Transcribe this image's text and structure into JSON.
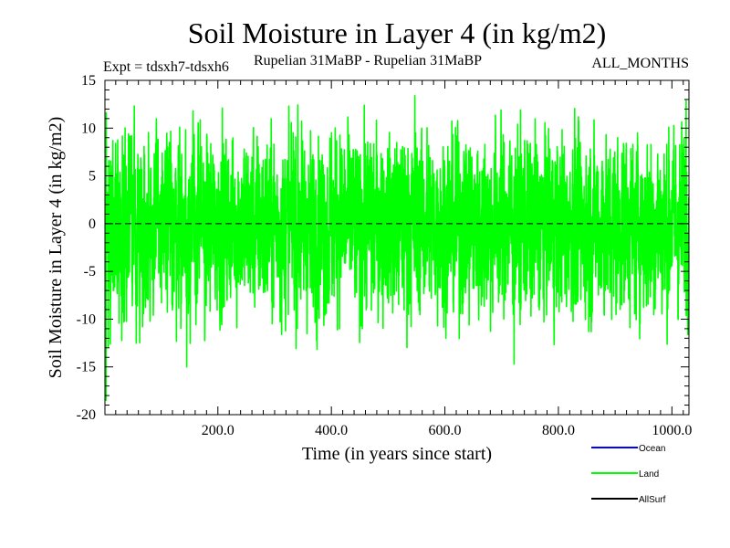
{
  "chart_data": {
    "type": "line",
    "title": "Soil Moisture in Layer 4 (in kg/m2)",
    "subtitle_left": "Expt = tdsxh7-tdsxh6",
    "subtitle_center": "Rupelian  31MaBP - Rupelian  31MaBP",
    "subtitle_right": "ALL_MONTHS",
    "xlabel": "Time (in years since start)",
    "ylabel": "Soil Moisture in Layer 4 (in kg/m2)",
    "xlim": [
      1,
      1030
    ],
    "ylim": [
      -20,
      15
    ],
    "x_ticks": [
      200,
      400,
      600,
      800,
      1000
    ],
    "x_tick_labels": [
      "200.0",
      "400.0",
      "600.0",
      "800.0",
      "1000.0"
    ],
    "y_ticks": [
      -20,
      -15,
      -10,
      -5,
      0,
      5,
      10,
      15
    ],
    "y_tick_labels": [
      "-20",
      "-15",
      "-10",
      "-5",
      "0",
      "5",
      "10",
      "15"
    ],
    "zero_line": "dashed",
    "legend_position": "bottom-right",
    "series": [
      {
        "name": "Ocean",
        "color": "#0000ff",
        "values": []
      },
      {
        "name": "Land",
        "color": "#00ff00",
        "note": "monthly noisy anomaly series, approx. range -18 to 13",
        "extremes": [
          {
            "x": 3,
            "y": -18.5
          },
          {
            "x": 15,
            "y": 8.7
          },
          {
            "x": 145,
            "y": -15.0
          },
          {
            "x": 325,
            "y": 12.3
          },
          {
            "x": 547,
            "y": 13.4
          },
          {
            "x": 722,
            "y": -14.7
          },
          {
            "x": 1025,
            "y": 12.9
          }
        ]
      },
      {
        "name": "AllSurf",
        "color": "#000000",
        "values": []
      }
    ]
  }
}
